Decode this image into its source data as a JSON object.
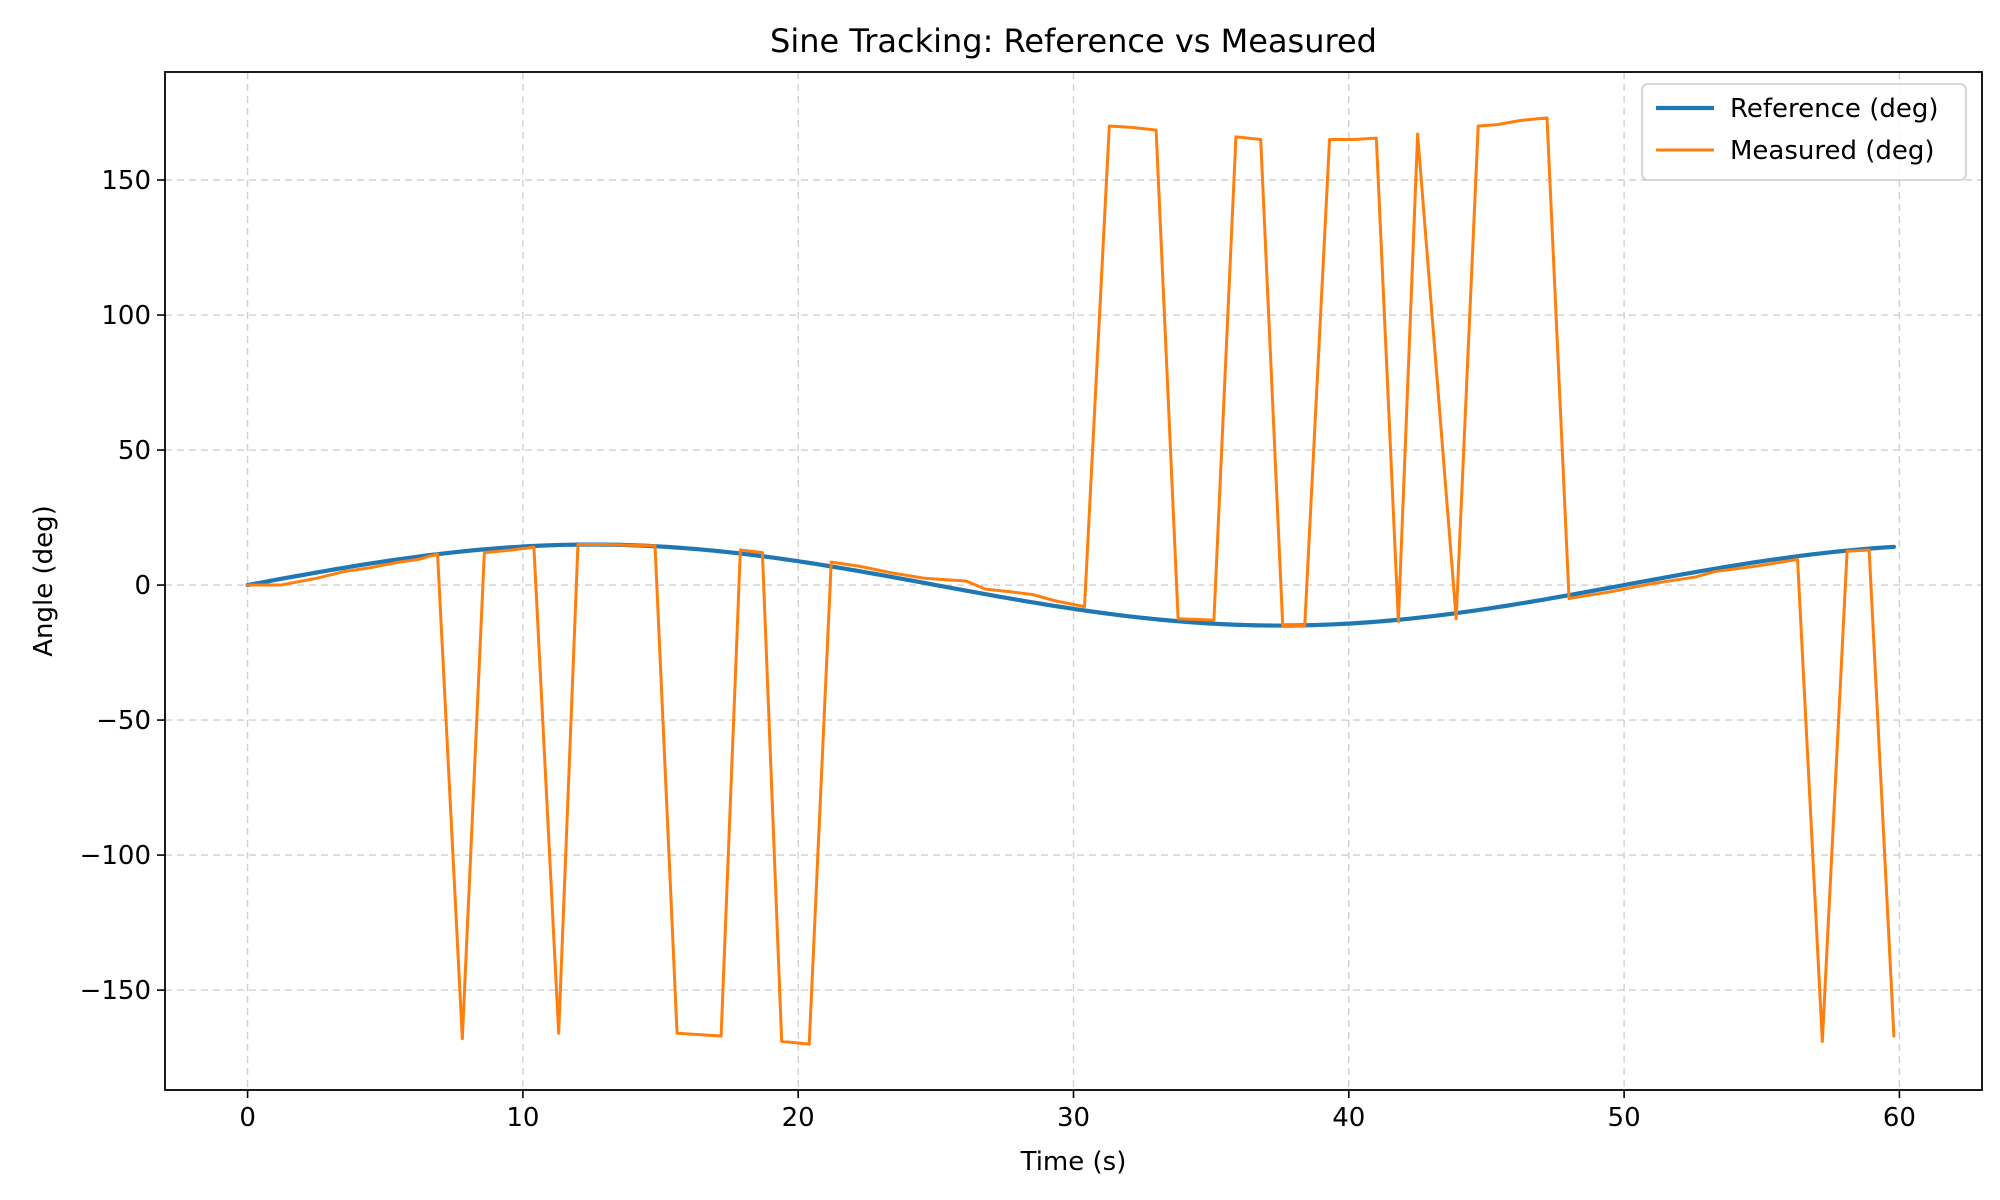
{
  "chart_data": {
    "type": "line",
    "title": "Sine Tracking: Reference vs Measured",
    "xlabel": "Time (s)",
    "ylabel": "Angle (deg)",
    "xlim": [
      -3,
      63
    ],
    "ylim": [
      -187,
      190
    ],
    "xticks": [
      0,
      10,
      20,
      30,
      40,
      50,
      60
    ],
    "xtick_labels": [
      "0",
      "10",
      "20",
      "30",
      "40",
      "50",
      "60"
    ],
    "yticks": [
      150,
      100,
      50,
      0,
      -50,
      -100,
      -150
    ],
    "ytick_labels": [
      "150",
      "100",
      "50",
      "0",
      "−50",
      "−100",
      "−150"
    ],
    "grid": true,
    "legend_position": "top-right",
    "series": [
      {
        "name": "Reference (deg)",
        "color": "#1f77b4",
        "kind": "sine",
        "amplitude": 15,
        "period": 50,
        "x_start": 0,
        "x_end": 59.8
      },
      {
        "name": "Measured (deg)",
        "color": "#ff7f0e",
        "x": [
          0,
          1.2,
          2.5,
          3.5,
          4.5,
          5.5,
          6.2,
          6.9,
          7.8,
          8.6,
          9.6,
          10.4,
          11.3,
          12.0,
          13.0,
          14.0,
          14.8,
          15.6,
          17.2,
          17.9,
          18.7,
          19.4,
          20.4,
          21.2,
          22.2,
          23.4,
          24.6,
          25.3,
          26.1,
          26.8,
          27.7,
          28.5,
          29.4,
          30.4,
          31.3,
          32.1,
          33.0,
          33.8,
          35.1,
          35.9,
          36.8,
          37.6,
          38.4,
          39.3,
          40.2,
          41.0,
          41.8,
          42.5,
          43.9,
          44.7,
          45.4,
          46.2,
          47.2,
          48.0,
          49.5,
          51.0,
          52.6,
          53.3,
          54.8,
          56.3,
          57.2,
          58.1,
          58.9,
          59.8
        ],
        "y": [
          0,
          0,
          2.5,
          5,
          6.5,
          8.5,
          9.5,
          11.5,
          -168,
          12,
          13,
          14,
          -166,
          15,
          15,
          14.7,
          14.5,
          -166,
          -167,
          13,
          12,
          -169,
          -170,
          8.5,
          7,
          4.5,
          2.5,
          2,
          1.5,
          -1.5,
          -2.5,
          -3.5,
          -6,
          -8,
          170,
          169.5,
          168.5,
          -12.5,
          -13,
          166,
          165,
          -15,
          -15,
          165,
          165,
          165.5,
          -13.5,
          167,
          -12.5,
          170,
          170.5,
          172,
          173,
          -5,
          -2.5,
          0.5,
          3,
          5,
          7,
          9.5,
          -169,
          12.5,
          13,
          -167
        ]
      }
    ]
  }
}
